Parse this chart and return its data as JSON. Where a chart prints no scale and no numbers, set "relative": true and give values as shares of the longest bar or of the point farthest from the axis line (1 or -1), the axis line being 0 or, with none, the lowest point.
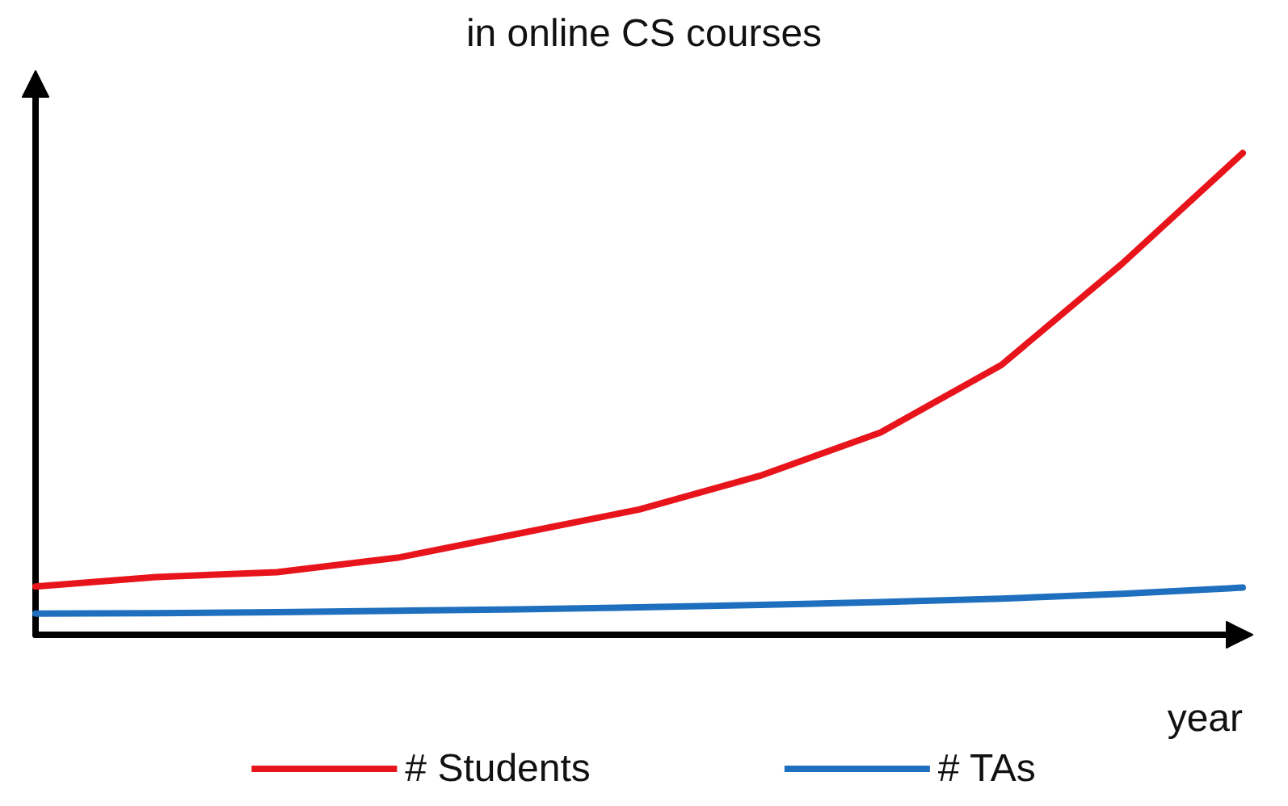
{
  "chart_data": {
    "type": "line",
    "title": "in online CS courses",
    "xlabel": "year",
    "relative": true,
    "categories": [
      null,
      null,
      null,
      null,
      null,
      null,
      null,
      null,
      null,
      null,
      null
    ],
    "series": [
      {
        "name": "# Students",
        "color": "#e8141b",
        "values": [
          0.1,
          0.12,
          0.13,
          0.16,
          0.21,
          0.26,
          0.33,
          0.42,
          0.56,
          0.77,
          1
        ]
      },
      {
        "name": "# TAs",
        "color": "#1f6fbf",
        "values": [
          0.044,
          0.045,
          0.047,
          0.05,
          0.053,
          0.057,
          0.062,
          0.068,
          0.075,
          0.085,
          0.098
        ]
      }
    ],
    "legend": "bottom",
    "grid": false,
    "marker": "none",
    "line_style": "solid"
  }
}
